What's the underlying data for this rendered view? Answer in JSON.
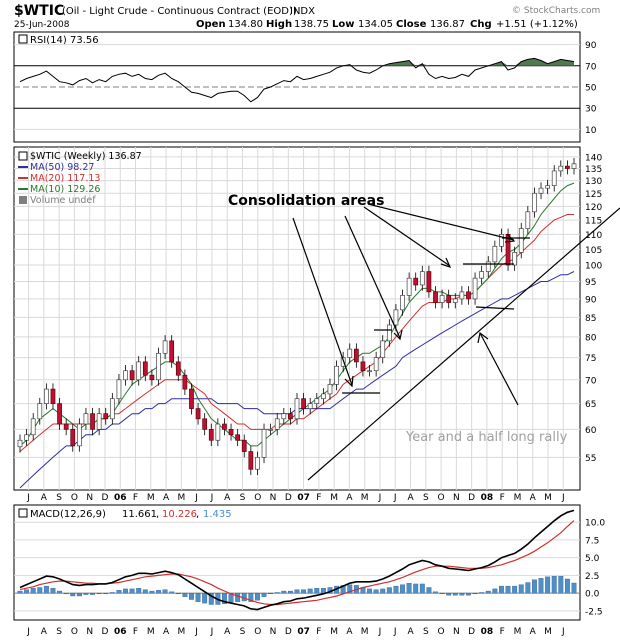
{
  "header": {
    "ticker": "$WTIC",
    "desc": "(Oil - Light Crude - Continuous Contract (EOD))",
    "exchange": "INDX",
    "date": "25-Jun-2008",
    "open_label": "Open",
    "open": "134.80",
    "high_label": "High",
    "high": "138.75",
    "low_label": "Low",
    "low": "134.05",
    "close_label": "Close",
    "close": "136.87",
    "chg_label": "Chg",
    "chg": "+1.51 (+1.12%)",
    "watermark": "© StockCharts.com"
  },
  "colors": {
    "frame": "#000000",
    "grid": "#d9d9d9",
    "ma50": "#2f2fa0",
    "ma20": "#d03030",
    "ma10": "#2a7a2a",
    "volume_legend": "#808080",
    "rsi_fill": "#4f7a4f",
    "macd_hist": "#4f8fc8",
    "candle_up": "#444444",
    "candle_down": "#c01030",
    "annot_gray": "#a0a0a0"
  },
  "rsi_panel": {
    "label": "RSI(14) 73.56",
    "ticks": [
      "90",
      "70",
      "50",
      "30",
      "10"
    ]
  },
  "price_panel": {
    "legend": [
      {
        "text": "$WTIC (Weekly) 136.87",
        "key": "price"
      },
      {
        "text": "MA(50) 98.27",
        "key": "ma50"
      },
      {
        "text": "MA(20) 117.13",
        "key": "ma20"
      },
      {
        "text": "MA(10) 129.26",
        "key": "ma10"
      },
      {
        "text": "Volume undef",
        "key": "volume"
      }
    ],
    "annotations": {
      "consolidation": "Consolidation areas",
      "rally": "Year and a half long rally"
    }
  },
  "macd_panel": {
    "label_prefix": "MACD(12,26,9)",
    "v1": "11.661",
    "v2": "10.226",
    "v3": "1.435",
    "ticks": [
      "10.0",
      "7.5",
      "5.0",
      "2.5",
      "0.0",
      "-2.5"
    ]
  },
  "chart_data": {
    "type": "line",
    "x_axis": [
      "J",
      "A",
      "S",
      "O",
      "N",
      "D",
      "06",
      "F",
      "M",
      "A",
      "M",
      "J",
      "J",
      "A",
      "S",
      "O",
      "N",
      "D",
      "07",
      "F",
      "M",
      "A",
      "M",
      "J",
      "J",
      "A",
      "S",
      "O",
      "N",
      "D",
      "08",
      "F",
      "M",
      "A",
      "M",
      "J"
    ],
    "price_axis": {
      "ticks": [
        55,
        60,
        65,
        70,
        75,
        80,
        85,
        90,
        95,
        100,
        105,
        110,
        115,
        120,
        125,
        130,
        135,
        140
      ],
      "scale": "log"
    },
    "series": [
      {
        "name": "$WTIC (Weekly)",
        "values": [
          58,
          59,
          62,
          65,
          68,
          65,
          61,
          60,
          57,
          61,
          63,
          60,
          63,
          62,
          66,
          70,
          72,
          70,
          74,
          71,
          70,
          76,
          79,
          74,
          71,
          68,
          64,
          62,
          60,
          58,
          61,
          60,
          59,
          58,
          56,
          53,
          55,
          60,
          60,
          62,
          63,
          62,
          66,
          64,
          65,
          66,
          67,
          69,
          73,
          75,
          77,
          74,
          72,
          72,
          75,
          79,
          83,
          87,
          91,
          96,
          94,
          98,
          92,
          89,
          91,
          89,
          90,
          92,
          90,
          96,
          98,
          101,
          106,
          110,
          100,
          104,
          112,
          118,
          125,
          127,
          128,
          134,
          136,
          135,
          137
        ]
      },
      {
        "name": "MA(50)",
        "values": [
          50,
          51,
          52,
          53,
          54,
          55,
          56,
          57,
          57,
          58,
          59,
          59,
          60,
          60,
          61,
          61,
          62,
          63,
          63,
          64,
          64,
          65,
          65,
          66,
          66,
          66,
          66,
          66,
          66,
          66,
          65,
          65,
          65,
          65,
          64,
          64,
          64,
          63,
          63,
          63,
          63,
          63,
          64,
          64,
          64,
          64,
          64,
          64,
          65,
          66,
          67,
          68,
          68,
          69,
          70,
          71,
          72,
          73,
          75,
          76,
          77,
          78,
          79,
          80,
          81,
          82,
          83,
          84,
          85,
          86,
          87,
          88,
          89,
          90,
          90,
          91,
          92,
          93,
          94,
          95,
          95,
          96,
          97,
          97,
          98
        ]
      },
      {
        "name": "MA(20)",
        "values": [
          56,
          57,
          58,
          59,
          60,
          61,
          61,
          61,
          61,
          61,
          61,
          61,
          62,
          62,
          63,
          63,
          64,
          65,
          66,
          67,
          68,
          69,
          70,
          70,
          70,
          70,
          69,
          68,
          67,
          65,
          64,
          63,
          62,
          61,
          61,
          60,
          60,
          60,
          60,
          61,
          61,
          61,
          62,
          62,
          63,
          64,
          65,
          66,
          67,
          69,
          70,
          71,
          72,
          73,
          74,
          76,
          78,
          80,
          82,
          84,
          86,
          88,
          89,
          89,
          89,
          90,
          90,
          91,
          91,
          92,
          94,
          96,
          98,
          100,
          101,
          102,
          104,
          106,
          108,
          111,
          113,
          115,
          116,
          117,
          117
        ]
      },
      {
        "name": "MA(10)",
        "values": [
          57,
          58,
          60,
          62,
          63,
          64,
          63,
          62,
          61,
          60,
          61,
          61,
          62,
          62,
          63,
          65,
          67,
          69,
          70,
          71,
          72,
          73,
          74,
          74,
          73,
          71,
          69,
          66,
          64,
          62,
          61,
          60,
          59,
          58,
          58,
          57,
          57,
          58,
          59,
          60,
          61,
          62,
          63,
          64,
          65,
          66,
          67,
          68,
          70,
          72,
          74,
          75,
          76,
          76,
          77,
          78,
          80,
          83,
          86,
          89,
          91,
          93,
          93,
          92,
          92,
          91,
          91,
          91,
          91,
          92,
          94,
          96,
          99,
          102,
          104,
          105,
          107,
          110,
          113,
          117,
          120,
          123,
          126,
          128,
          129
        ]
      }
    ],
    "rsi": {
      "ylim": [
        0,
        100
      ],
      "values": [
        55,
        58,
        60,
        62,
        65,
        60,
        55,
        54,
        52,
        56,
        58,
        54,
        57,
        55,
        60,
        62,
        63,
        60,
        62,
        58,
        57,
        61,
        63,
        58,
        55,
        50,
        45,
        44,
        42,
        40,
        44,
        45,
        46,
        46,
        42,
        36,
        40,
        48,
        50,
        53,
        56,
        55,
        60,
        57,
        58,
        60,
        62,
        64,
        68,
        70,
        71,
        66,
        64,
        63,
        66,
        70,
        72,
        73,
        74,
        75,
        68,
        72,
        62,
        58,
        60,
        58,
        59,
        62,
        60,
        66,
        68,
        70,
        72,
        74,
        66,
        68,
        74,
        76,
        77,
        75,
        72,
        74,
        76,
        75,
        74
      ]
    },
    "macd": {
      "ylim": [
        -3.5,
        12
      ],
      "macd_line": [
        0.8,
        1.2,
        1.6,
        2.0,
        2.4,
        2.3,
        2.0,
        1.6,
        1.2,
        1.1,
        1.2,
        1.2,
        1.3,
        1.3,
        1.5,
        1.9,
        2.3,
        2.5,
        2.8,
        2.8,
        2.7,
        2.9,
        3.1,
        2.9,
        2.6,
        2.0,
        1.4,
        0.8,
        0.2,
        -0.4,
        -0.9,
        -1.2,
        -1.4,
        -1.6,
        -1.8,
        -2.2,
        -2.3,
        -2.0,
        -1.7,
        -1.5,
        -1.2,
        -1.1,
        -0.8,
        -0.7,
        -0.5,
        -0.3,
        -0.1,
        0.2,
        0.6,
        1.0,
        1.4,
        1.6,
        1.6,
        1.6,
        1.7,
        2.0,
        2.4,
        2.9,
        3.4,
        4.0,
        4.3,
        4.6,
        4.4,
        4.0,
        3.8,
        3.5,
        3.4,
        3.3,
        3.2,
        3.4,
        3.6,
        3.9,
        4.4,
        5.0,
        5.3,
        5.6,
        6.2,
        6.9,
        7.8,
        8.6,
        9.4,
        10.2,
        10.9,
        11.4,
        11.66
      ],
      "signal_line": [
        0.5,
        0.7,
        0.9,
        1.2,
        1.4,
        1.6,
        1.7,
        1.7,
        1.6,
        1.5,
        1.4,
        1.4,
        1.3,
        1.3,
        1.4,
        1.5,
        1.7,
        1.9,
        2.1,
        2.3,
        2.4,
        2.5,
        2.6,
        2.7,
        2.7,
        2.5,
        2.3,
        2.0,
        1.6,
        1.2,
        0.7,
        0.3,
        -0.1,
        -0.4,
        -0.7,
        -1.0,
        -1.3,
        -1.5,
        -1.6,
        -1.6,
        -1.5,
        -1.4,
        -1.3,
        -1.2,
        -1.1,
        -1.0,
        -0.8,
        -0.6,
        -0.4,
        -0.1,
        0.2,
        0.5,
        0.8,
        1.0,
        1.2,
        1.4,
        1.6,
        1.9,
        2.2,
        2.6,
        3.0,
        3.3,
        3.6,
        3.8,
        3.8,
        3.8,
        3.7,
        3.6,
        3.5,
        3.5,
        3.5,
        3.6,
        3.8,
        4.0,
        4.3,
        4.6,
        5.0,
        5.4,
        5.9,
        6.5,
        7.1,
        7.8,
        8.5,
        9.4,
        10.226
      ]
    }
  }
}
